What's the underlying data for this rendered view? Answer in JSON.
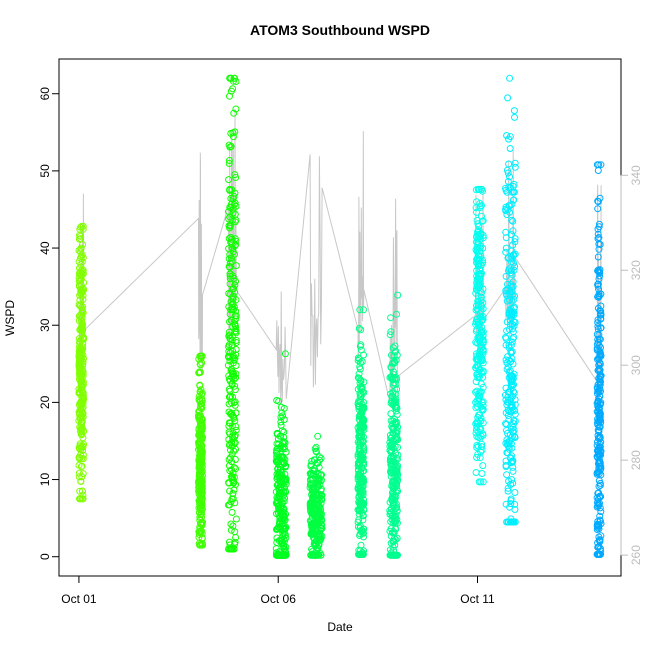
{
  "chart_data": {
    "type": "scatter",
    "title": "ATOM3 Southbound WSPD",
    "xlabel": "Date",
    "ylabel": "WSPD",
    "x_unit": "days since Oct 01",
    "xlim": [
      -0.5,
      13.6
    ],
    "ylim": [
      -2.5,
      64.5
    ],
    "y2lim": [
      255.6,
      364.5
    ],
    "x_ticks": [
      {
        "value": 0,
        "label": "Oct 01"
      },
      {
        "value": 5,
        "label": "Oct 06"
      },
      {
        "value": 10,
        "label": "Oct 11"
      }
    ],
    "y_ticks": [
      0,
      10,
      20,
      30,
      40,
      50,
      60
    ],
    "y2_ticks": [
      260,
      280,
      300,
      320,
      340
    ],
    "colors": {
      "axis": "#000000",
      "right_axis": "#bdbdbd",
      "direction_line": "#c8c8c8"
    },
    "series": [
      {
        "x_range": [
          0.0,
          0.12
        ],
        "y_range": [
          7.5,
          42.8
        ],
        "mean": 25,
        "color": "#80ff00"
      },
      {
        "x_range": [
          3.0,
          3.1
        ],
        "y_range": [
          1.5,
          26.0
        ],
        "mean": 12,
        "color": "#40ff00"
      },
      {
        "x_range": [
          3.75,
          3.95
        ],
        "y_range": [
          1.0,
          62.0
        ],
        "mean": 28,
        "color": "#10ff00"
      },
      {
        "x_range": [
          4.95,
          5.2
        ],
        "y_range": [
          0.2,
          26.3
        ],
        "mean": 6,
        "color": "#00ff20"
      },
      {
        "x_range": [
          5.8,
          6.1
        ],
        "y_range": [
          0.2,
          15.6
        ],
        "mean": 6,
        "color": "#00ff40"
      },
      {
        "x_range": [
          7.0,
          7.15
        ],
        "y_range": [
          0.3,
          32.0
        ],
        "mean": 12,
        "color": "#00ff80"
      },
      {
        "x_range": [
          7.8,
          8.0
        ],
        "y_range": [
          0.2,
          33.9
        ],
        "mean": 12,
        "color": "#00ff90"
      },
      {
        "x_range": [
          9.95,
          10.15
        ],
        "y_range": [
          9.7,
          47.6
        ],
        "mean": 30,
        "color": "#00ffee"
      },
      {
        "x_range": [
          10.7,
          10.95
        ],
        "y_range": [
          4.5,
          62.0
        ],
        "mean": 28,
        "color": "#00eeff"
      },
      {
        "x_range": [
          13.0,
          13.1
        ],
        "y_range": [
          0.3,
          50.8
        ],
        "mean": 18,
        "color": "#00aaff"
      }
    ]
  }
}
